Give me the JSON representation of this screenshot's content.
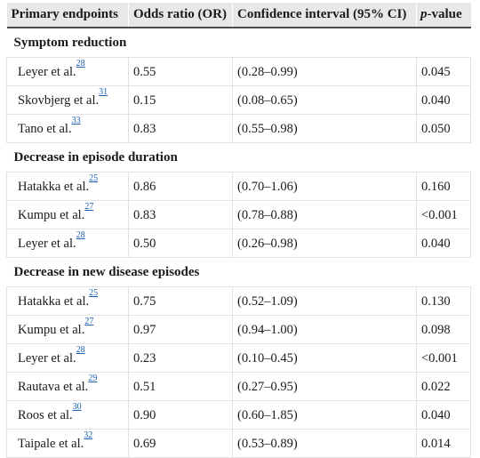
{
  "header": {
    "col1": "Primary endpoints",
    "col2": "Odds ratio (OR)",
    "col3": "Confidence interval (95% CI)",
    "col4_italic": "p",
    "col4_rest": "-value"
  },
  "sections": [
    {
      "title": "Symptom reduction",
      "rows": [
        {
          "study": "Leyer et al.",
          "ref": "28",
          "or": "0.55",
          "ci": "(0.28–0.99)",
          "p": "0.045"
        },
        {
          "study": "Skovbjerg et al.",
          "ref": "31",
          "or": "0.15",
          "ci": "(0.08–0.65)",
          "p": "0.040"
        },
        {
          "study": "Tano et al.",
          "ref": "33",
          "or": "0.83",
          "ci": "(0.55–0.98)",
          "p": "0.050"
        }
      ]
    },
    {
      "title": "Decrease in episode duration",
      "rows": [
        {
          "study": "Hatakka et al.",
          "ref": "25",
          "or": "0.86",
          "ci": "(0.70–1.06)",
          "p": "0.160"
        },
        {
          "study": "Kumpu et al.",
          "ref": "27",
          "or": "0.83",
          "ci": "(0.78–0.88)",
          "p": "<0.001"
        },
        {
          "study": "Leyer et al.",
          "ref": "28",
          "or": "0.50",
          "ci": "(0.26–0.98)",
          "p": "0.040"
        }
      ]
    },
    {
      "title": "Decrease in new disease episodes",
      "rows": [
        {
          "study": "Hatakka et al.",
          "ref": "25",
          "or": "0.75",
          "ci": "(0.52–1.09)",
          "p": "0.130"
        },
        {
          "study": "Kumpu et al.",
          "ref": "27",
          "or": "0.97",
          "ci": "(0.94–1.00)",
          "p": "0.098"
        },
        {
          "study": "Leyer et al.",
          "ref": "28",
          "or": "0.23",
          "ci": "(0.10–0.45)",
          "p": "<0.001"
        },
        {
          "study": "Rautava et al.",
          "ref": "29",
          "or": "0.51",
          "ci": "(0.27–0.95)",
          "p": "0.022"
        },
        {
          "study": "Roos et al.",
          "ref": "30",
          "or": "0.90",
          "ci": "(0.60–1.85)",
          "p": "0.040"
        },
        {
          "study": "Taipale et al.",
          "ref": "32",
          "or": "0.69",
          "ci": "(0.53–0.89)",
          "p": "0.014"
        }
      ]
    }
  ]
}
